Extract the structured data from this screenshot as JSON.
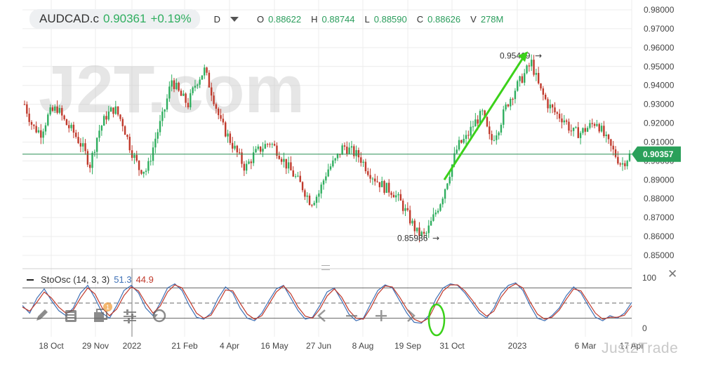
{
  "header": {
    "symbol": "AUDCAD.c",
    "price": "0.90361",
    "change": "+0.19%",
    "timeframe": "D",
    "ohlc": {
      "o_label": "O",
      "o": "0.88622",
      "h_label": "H",
      "h": "0.88744",
      "l_label": "L",
      "l": "0.88590",
      "c_label": "C",
      "c": "0.88626",
      "v_label": "V",
      "v": "278M"
    }
  },
  "watermark": {
    "text": "J2T.com"
  },
  "brand": {
    "text": "Just2Trade"
  },
  "indicator": {
    "name": "StoOsc (14, 3, 3)",
    "k_value": "51.3",
    "d_value": "44.9"
  },
  "colors": {
    "up": "#2fae5f",
    "down": "#c0392b",
    "current": "#2aa05a",
    "annotation": "#3bd11a",
    "k_line": "#3d6fb5",
    "d_line": "#c0392b"
  },
  "toolbar_icons": [
    "pencil-icon",
    "list-icon",
    "layers-icon",
    "sliders-icon",
    "reset-icon",
    "arrow-left-icon",
    "minus-icon",
    "plus-icon",
    "arrow-right-icon"
  ],
  "toolbar_badge": "1",
  "chart_data": [
    {
      "type": "candlestick",
      "title": "AUDCAD.c",
      "ylim": [
        0.845,
        0.982
      ],
      "y_ticks": [
        "0.98000",
        "0.97000",
        "0.96000",
        "0.95000",
        "0.94000",
        "0.93000",
        "0.92000",
        "0.91000",
        "0.90000",
        "0.89000",
        "0.88000",
        "0.87000",
        "0.86000",
        "0.85000"
      ],
      "x_ticks": [
        "18 Oct",
        "29 Nov",
        "2022",
        "21 Feb",
        "4 Apr",
        "16 May",
        "27 Jun",
        "8 Aug",
        "19 Sep",
        "31 Oct",
        "2023",
        "6 Mar",
        "17 Apr"
      ],
      "current_price": "0.90357",
      "annotations": [
        {
          "label": "0.95419",
          "type": "high",
          "value": 0.95419
        },
        {
          "label": "0.85986",
          "type": "low",
          "value": 0.85986
        }
      ],
      "trend_arrow": {
        "from": 0.89,
        "to": 0.958
      },
      "grid": true,
      "close_path": [
        0.93,
        0.918,
        0.915,
        0.925,
        0.928,
        0.92,
        0.915,
        0.908,
        0.898,
        0.915,
        0.924,
        0.928,
        0.92,
        0.906,
        0.896,
        0.895,
        0.912,
        0.925,
        0.943,
        0.935,
        0.93,
        0.942,
        0.948,
        0.935,
        0.92,
        0.912,
        0.904,
        0.896,
        0.903,
        0.907,
        0.91,
        0.905,
        0.898,
        0.892,
        0.886,
        0.878,
        0.883,
        0.895,
        0.9,
        0.908,
        0.905,
        0.902,
        0.895,
        0.89,
        0.886,
        0.884,
        0.878,
        0.87,
        0.862,
        0.86,
        0.87,
        0.88,
        0.894,
        0.908,
        0.912,
        0.92,
        0.925,
        0.91,
        0.918,
        0.93,
        0.938,
        0.945,
        0.952,
        0.938,
        0.93,
        0.925,
        0.922,
        0.915,
        0.915,
        0.918,
        0.921,
        0.912,
        0.905,
        0.898,
        0.903
      ]
    },
    {
      "type": "line",
      "title": "StoOsc (14, 3, 3)",
      "ylim": [
        0,
        100
      ],
      "y_ticks": [
        "100",
        "0"
      ],
      "levels": [
        80,
        50,
        20
      ],
      "series": [
        {
          "name": "K",
          "values": [
            45,
            30,
            60,
            78,
            55,
            35,
            25,
            40,
            70,
            85,
            60,
            30,
            20,
            45,
            75,
            85,
            70,
            40,
            25,
            50,
            80,
            88,
            75,
            45,
            22,
            18,
            30,
            60,
            82,
            70,
            40,
            20,
            15,
            30,
            55,
            78,
            85,
            60,
            35,
            18,
            22,
            45,
            72,
            80,
            55,
            28,
            15,
            20,
            48,
            75,
            86,
            80,
            55,
            30,
            12,
            10,
            25,
            58,
            80,
            88,
            85,
            70,
            50,
            30,
            20,
            40,
            70,
            85,
            90,
            75,
            45,
            20,
            15,
            25,
            40,
            65,
            82,
            70,
            45,
            22,
            15,
            25,
            20,
            30,
            51.3
          ]
        },
        {
          "name": "D",
          "values": [
            42,
            34,
            52,
            72,
            60,
            42,
            30,
            36,
            60,
            80,
            68,
            40,
            25,
            38,
            65,
            82,
            74,
            50,
            30,
            44,
            72,
            86,
            80,
            55,
            30,
            20,
            26,
            50,
            76,
            74,
            50,
            28,
            18,
            25,
            48,
            72,
            84,
            68,
            42,
            24,
            20,
            38,
            64,
            78,
            62,
            36,
            20,
            18,
            40,
            68,
            84,
            82,
            62,
            38,
            18,
            12,
            20,
            48,
            74,
            86,
            86,
            74,
            56,
            36,
            24,
            34,
            62,
            80,
            88,
            80,
            52,
            28,
            18,
            22,
            36,
            58,
            78,
            74,
            52,
            30,
            18,
            22,
            22,
            26,
            44.9
          ]
        }
      ]
    }
  ]
}
